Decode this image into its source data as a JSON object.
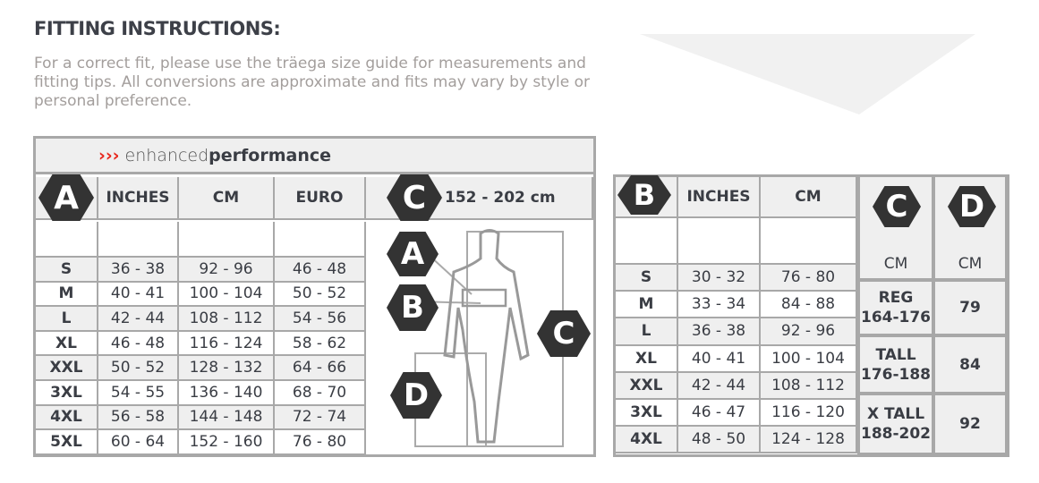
{
  "title": "FITTING INSTRUCTIONS:",
  "intro": "For a correct fit, please use the träega size guide for measurements and fitting tips. All conversions are approximate and fits may vary by style or personal preference.",
  "brand": {
    "arrows": "›››",
    "light": "enhanced",
    "bold": "performance",
    "accent": "#e8261c"
  },
  "top": {
    "badge": "A",
    "headers": [
      "INCHES",
      "CM",
      "EURO"
    ],
    "height_badge": "C",
    "height_range": "152 - 202 cm",
    "rows": [
      [
        "S",
        "36 - 38",
        "92 - 96",
        "46 - 48"
      ],
      [
        "M",
        "40 - 41",
        "100 - 104",
        "50 - 52"
      ],
      [
        "L",
        "42 - 44",
        "108 - 112",
        "54 - 56"
      ],
      [
        "XL",
        "46 - 48",
        "116 - 124",
        "58 - 62"
      ],
      [
        "XXL",
        "50 - 52",
        "128 - 132",
        "64 - 66"
      ],
      [
        "3XL",
        "54 - 55",
        "136 - 140",
        "68 - 70"
      ],
      [
        "4XL",
        "56 - 58",
        "144 - 148",
        "72 - 74"
      ],
      [
        "5XL",
        "60 - 64",
        "152 - 160",
        "76 - 80"
      ]
    ],
    "figure_badges": [
      "A",
      "B",
      "C",
      "D"
    ]
  },
  "bottom": {
    "badge": "B",
    "headers": [
      "INCHES",
      "CM"
    ],
    "rows": [
      [
        "S",
        "30 - 32",
        "76 - 80"
      ],
      [
        "M",
        "33 - 34",
        "84 - 88"
      ],
      [
        "L",
        "36 - 38",
        "92 - 96"
      ],
      [
        "XL",
        "40 - 41",
        "100 - 104"
      ],
      [
        "XXL",
        "42 - 44",
        "108 - 112"
      ],
      [
        "3XL",
        "46 - 47",
        "116 - 120"
      ],
      [
        "4XL",
        "48 - 50",
        "124 - 128"
      ]
    ],
    "c_badge": "C",
    "d_badge": "D",
    "c_unit": "CM",
    "d_unit": "CM",
    "lengths": [
      {
        "name": "REG",
        "range": "164-176",
        "inseam": "79"
      },
      {
        "name": "TALL",
        "range": "176-188",
        "inseam": "84"
      },
      {
        "name": "X TALL",
        "range": "188-202",
        "inseam": "92"
      }
    ]
  }
}
